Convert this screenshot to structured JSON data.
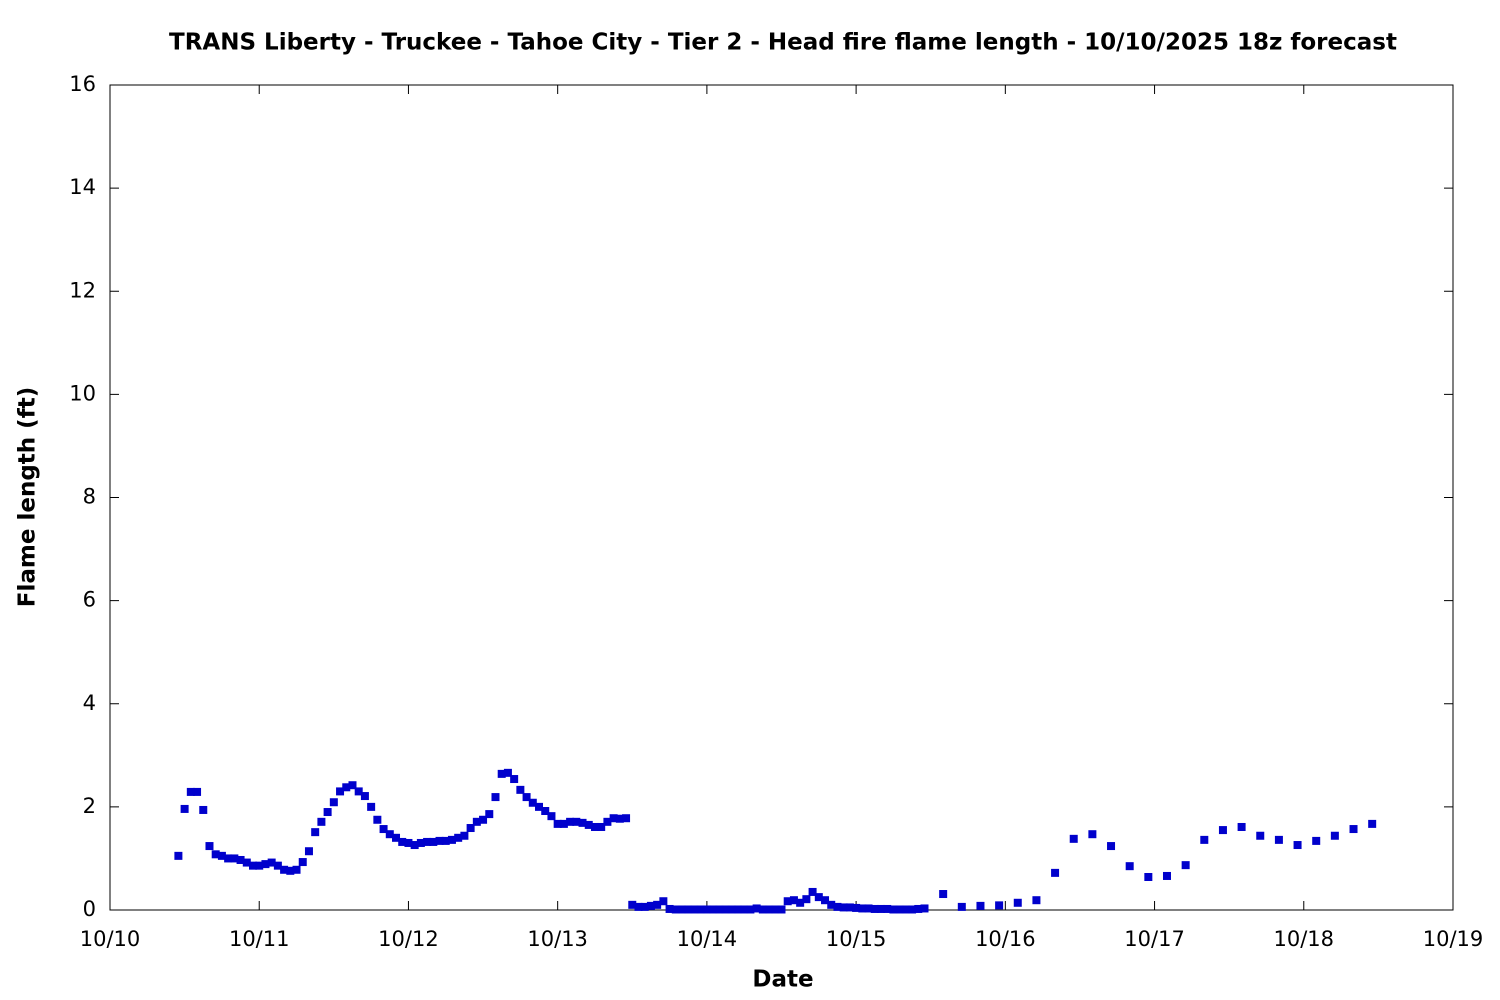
{
  "chart_data": {
    "type": "scatter",
    "title": "TRANS Liberty - Truckee - Tahoe City - Tier 2 - Head fire flame length - 10/10/2025 18z forecast",
    "xlabel": "Date",
    "ylabel": "Flame length (ft)",
    "xlim": [
      0,
      216
    ],
    "xticks": [
      {
        "value": 0,
        "label": "10/10"
      },
      {
        "value": 24,
        "label": "10/11"
      },
      {
        "value": 48,
        "label": "10/12"
      },
      {
        "value": 72,
        "label": "10/13"
      },
      {
        "value": 96,
        "label": "10/14"
      },
      {
        "value": 120,
        "label": "10/15"
      },
      {
        "value": 144,
        "label": "10/16"
      },
      {
        "value": 168,
        "label": "10/17"
      },
      {
        "value": 192,
        "label": "10/18"
      },
      {
        "value": 216,
        "label": "10/19"
      }
    ],
    "ylim": [
      0,
      16
    ],
    "yticks": [
      0,
      2,
      4,
      6,
      8,
      10,
      12,
      14,
      16
    ],
    "series": [
      {
        "color": "#0000cc",
        "x": [
          11,
          12,
          13,
          14,
          15,
          16,
          17,
          18,
          19,
          20,
          21,
          22,
          23,
          24,
          25,
          26,
          27,
          28,
          29,
          30,
          31,
          32,
          33,
          34,
          35,
          36,
          37,
          38,
          39,
          40,
          41,
          42,
          43,
          44,
          45,
          46,
          47,
          48,
          49,
          50,
          51,
          52,
          53,
          54,
          55,
          56,
          57,
          58,
          59,
          60,
          61,
          62,
          63,
          64,
          65,
          66,
          67,
          68,
          69,
          70,
          71,
          72,
          73,
          74,
          75,
          76,
          77,
          78,
          79,
          80,
          81,
          82,
          83,
          84,
          85,
          86,
          87,
          88,
          89,
          90,
          91,
          92,
          93,
          94,
          95,
          96,
          97,
          98,
          99,
          100,
          101,
          102,
          103,
          104,
          105,
          106,
          107,
          108,
          109,
          110,
          111,
          112,
          113,
          114,
          115,
          116,
          117,
          118,
          119,
          120,
          121,
          122,
          123,
          124,
          125,
          126,
          127,
          128,
          129,
          130,
          131,
          134,
          137,
          140,
          143,
          146,
          149,
          152,
          155,
          158,
          161,
          164,
          167,
          170,
          173,
          176,
          179,
          182,
          185,
          188,
          191,
          194,
          197,
          200,
          203
        ],
        "values": [
          1.05,
          1.96,
          2.29,
          2.29,
          1.94,
          1.24,
          1.08,
          1.05,
          1.0,
          1.0,
          0.97,
          0.92,
          0.86,
          0.86,
          0.89,
          0.92,
          0.86,
          0.78,
          0.76,
          0.78,
          0.93,
          1.14,
          1.51,
          1.71,
          1.9,
          2.09,
          2.3,
          2.38,
          2.42,
          2.3,
          2.21,
          2.0,
          1.75,
          1.57,
          1.47,
          1.4,
          1.32,
          1.3,
          1.26,
          1.3,
          1.32,
          1.32,
          1.34,
          1.34,
          1.36,
          1.4,
          1.44,
          1.59,
          1.71,
          1.75,
          1.86,
          2.19,
          2.64,
          2.66,
          2.54,
          2.33,
          2.19,
          2.08,
          2.0,
          1.92,
          1.82,
          1.67,
          1.67,
          1.71,
          1.71,
          1.69,
          1.65,
          1.61,
          1.61,
          1.71,
          1.78,
          1.77,
          1.78,
          0.1,
          0.06,
          0.06,
          0.08,
          0.1,
          0.17,
          0.02,
          0.01,
          0.01,
          0.01,
          0.01,
          0.01,
          0.01,
          0.01,
          0.01,
          0.01,
          0.01,
          0.01,
          0.01,
          0.01,
          0.03,
          0.01,
          0.01,
          0.01,
          0.01,
          0.17,
          0.19,
          0.14,
          0.21,
          0.35,
          0.25,
          0.19,
          0.1,
          0.06,
          0.05,
          0.05,
          0.04,
          0.03,
          0.03,
          0.02,
          0.02,
          0.02,
          0.01,
          0.01,
          0.01,
          0.01,
          0.02,
          0.03,
          0.31,
          0.06,
          0.08,
          0.09,
          0.14,
          0.19,
          0.72,
          1.38,
          1.47,
          1.24,
          0.85,
          0.64,
          0.66,
          0.87,
          1.36,
          1.55,
          1.61,
          1.44,
          1.36,
          1.26,
          1.34,
          1.44,
          1.57,
          1.67
        ]
      }
    ]
  }
}
